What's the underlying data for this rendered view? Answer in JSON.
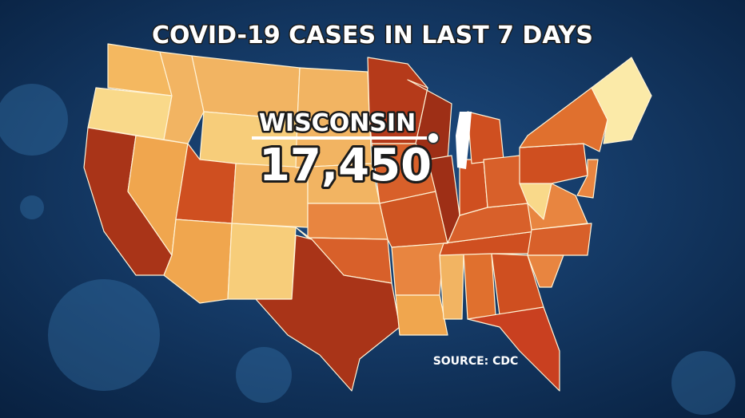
{
  "header": {
    "title": "COVID-19 CASES IN LAST 7 DAYS"
  },
  "callout": {
    "label": "WISCONSIN",
    "value": "17,450"
  },
  "footer": {
    "source": "SOURCE: CDC"
  }
}
